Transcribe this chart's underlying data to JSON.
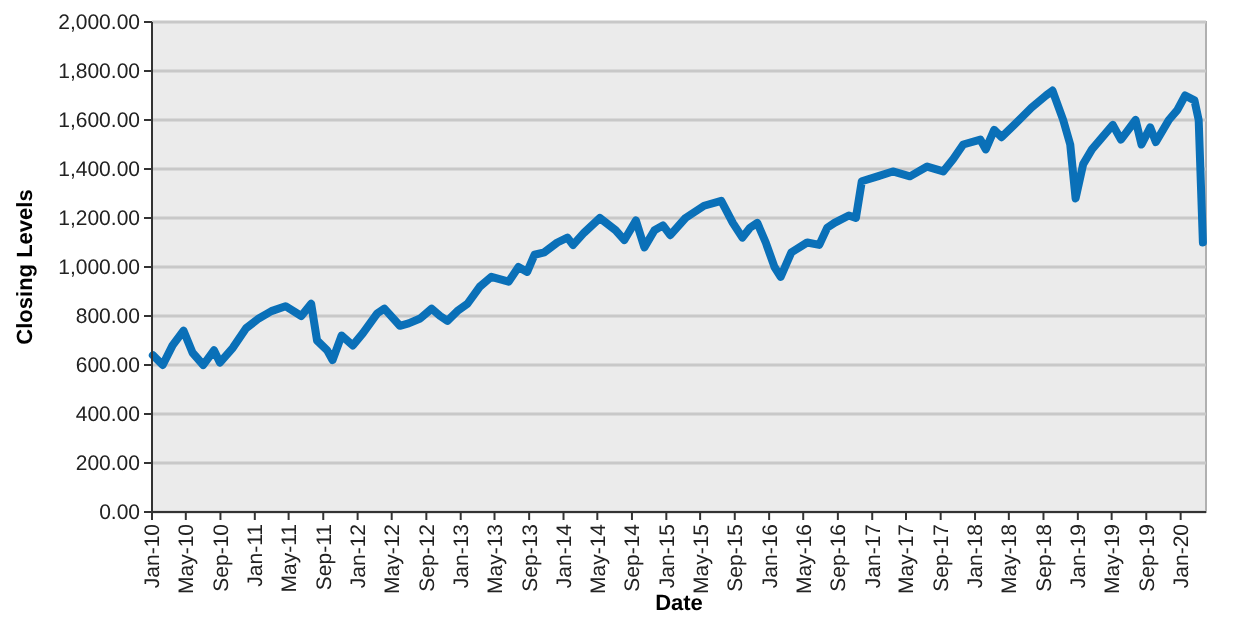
{
  "chart_data": {
    "type": "line",
    "xlabel": "Date",
    "ylabel": "Closing Levels",
    "grid": "y",
    "marker": "none",
    "line_style": "solid",
    "xlim": [
      "2010-01-01",
      "2020-03-31"
    ],
    "x": [
      "2010-01-04",
      "2010-02-08",
      "2010-03-15",
      "2010-04-23",
      "2010-05-25",
      "2010-07-02",
      "2010-08-09",
      "2010-08-30",
      "2010-10-15",
      "2010-12-01",
      "2011-01-15",
      "2011-03-01",
      "2011-04-20",
      "2011-06-15",
      "2011-07-20",
      "2011-08-10",
      "2011-09-15",
      "2011-10-04",
      "2011-11-05",
      "2011-12-15",
      "2012-01-20",
      "2012-03-10",
      "2012-04-05",
      "2012-05-30",
      "2012-06-30",
      "2012-08-10",
      "2012-09-20",
      "2012-10-20",
      "2012-11-15",
      "2012-12-20",
      "2013-01-25",
      "2013-03-10",
      "2013-04-20",
      "2013-06-20",
      "2013-07-25",
      "2013-08-25",
      "2013-09-20",
      "2013-10-25",
      "2013-12-10",
      "2014-01-15",
      "2014-02-04",
      "2014-03-15",
      "2014-05-10",
      "2014-07-05",
      "2014-08-05",
      "2014-09-15",
      "2014-10-15",
      "2014-11-20",
      "2014-12-20",
      "2015-01-15",
      "2015-03-10",
      "2015-05-15",
      "2015-07-15",
      "2015-08-25",
      "2015-09-28",
      "2015-10-25",
      "2015-11-20",
      "2015-12-20",
      "2016-01-20",
      "2016-02-11",
      "2016-03-20",
      "2016-05-15",
      "2016-06-27",
      "2016-07-25",
      "2016-08-20",
      "2016-10-10",
      "2016-11-04",
      "2016-11-25",
      "2017-01-20",
      "2017-03-15",
      "2017-05-15",
      "2017-07-15",
      "2017-09-10",
      "2017-10-15",
      "2017-11-20",
      "2018-01-20",
      "2018-02-08",
      "2018-03-10",
      "2018-04-05",
      "2018-05-20",
      "2018-07-20",
      "2018-09-10",
      "2018-10-03",
      "2018-11-10",
      "2018-12-05",
      "2018-12-24",
      "2019-01-20",
      "2019-02-20",
      "2019-04-20",
      "2019-05-05",
      "2019-06-03",
      "2019-07-25",
      "2019-08-15",
      "2019-09-15",
      "2019-10-05",
      "2019-11-20",
      "2019-12-20",
      "2020-01-17",
      "2020-02-19",
      "2020-03-05",
      "2020-03-20"
    ],
    "ylim": [
      0,
      2000
    ],
    "xticks": [
      {
        "value": "2010-01-01",
        "label": "Jan-10"
      },
      {
        "value": "2010-05-01",
        "label": "May-10"
      },
      {
        "value": "2010-09-01",
        "label": "Sep-10"
      },
      {
        "value": "2011-01-01",
        "label": "Jan-11"
      },
      {
        "value": "2011-05-01",
        "label": "May-11"
      },
      {
        "value": "2011-09-01",
        "label": "Sep-11"
      },
      {
        "value": "2012-01-01",
        "label": "Jan-12"
      },
      {
        "value": "2012-05-01",
        "label": "May-12"
      },
      {
        "value": "2012-09-01",
        "label": "Sep-12"
      },
      {
        "value": "2013-01-01",
        "label": "Jan-13"
      },
      {
        "value": "2013-05-01",
        "label": "May-13"
      },
      {
        "value": "2013-09-01",
        "label": "Sep-13"
      },
      {
        "value": "2014-01-01",
        "label": "Jan-14"
      },
      {
        "value": "2014-05-01",
        "label": "May-14"
      },
      {
        "value": "2014-09-01",
        "label": "Sep-14"
      },
      {
        "value": "2015-01-01",
        "label": "Jan-15"
      },
      {
        "value": "2015-05-01",
        "label": "May-15"
      },
      {
        "value": "2015-09-01",
        "label": "Sep-15"
      },
      {
        "value": "2016-01-01",
        "label": "Jan-16"
      },
      {
        "value": "2016-05-01",
        "label": "May-16"
      },
      {
        "value": "2016-09-01",
        "label": "Sep-16"
      },
      {
        "value": "2017-01-01",
        "label": "Jan-17"
      },
      {
        "value": "2017-05-01",
        "label": "May-17"
      },
      {
        "value": "2017-09-01",
        "label": "Sep-17"
      },
      {
        "value": "2018-01-01",
        "label": "Jan-18"
      },
      {
        "value": "2018-05-01",
        "label": "May-18"
      },
      {
        "value": "2018-09-01",
        "label": "Sep-18"
      },
      {
        "value": "2019-01-01",
        "label": "Jan-19"
      },
      {
        "value": "2019-05-01",
        "label": "May-19"
      },
      {
        "value": "2019-09-01",
        "label": "Sep-19"
      },
      {
        "value": "2020-01-01",
        "label": "Jan-20"
      }
    ],
    "yticks": [
      {
        "value": 0,
        "label": "0.00"
      },
      {
        "value": 200,
        "label": "200.00"
      },
      {
        "value": 400,
        "label": "400.00"
      },
      {
        "value": 600,
        "label": "600.00"
      },
      {
        "value": 800,
        "label": "800.00"
      },
      {
        "value": 1000,
        "label": "1,000.00"
      },
      {
        "value": 1200,
        "label": "1,200.00"
      },
      {
        "value": 1400,
        "label": "1,400.00"
      },
      {
        "value": 1600,
        "label": "1,600.00"
      },
      {
        "value": 1800,
        "label": "1,800.00"
      },
      {
        "value": 2000,
        "label": "2,000.00"
      }
    ],
    "series": [
      {
        "color": "#0a70b8",
        "values": [
          640,
          600,
          680,
          740,
          650,
          600,
          660,
          610,
          670,
          750,
          790,
          820,
          840,
          800,
          850,
          700,
          660,
          620,
          720,
          680,
          730,
          810,
          830,
          760,
          770,
          790,
          830,
          800,
          780,
          820,
          850,
          920,
          960,
          940,
          1000,
          980,
          1050,
          1060,
          1100,
          1120,
          1090,
          1140,
          1200,
          1150,
          1110,
          1190,
          1080,
          1150,
          1170,
          1130,
          1200,
          1250,
          1270,
          1180,
          1120,
          1160,
          1180,
          1100,
          1000,
          960,
          1060,
          1100,
          1090,
          1160,
          1180,
          1210,
          1200,
          1350,
          1370,
          1390,
          1370,
          1410,
          1390,
          1440,
          1500,
          1520,
          1480,
          1560,
          1530,
          1580,
          1650,
          1700,
          1720,
          1600,
          1500,
          1280,
          1420,
          1480,
          1560,
          1580,
          1520,
          1600,
          1500,
          1570,
          1510,
          1600,
          1640,
          1700,
          1680,
          1600,
          1100
        ]
      }
    ]
  }
}
